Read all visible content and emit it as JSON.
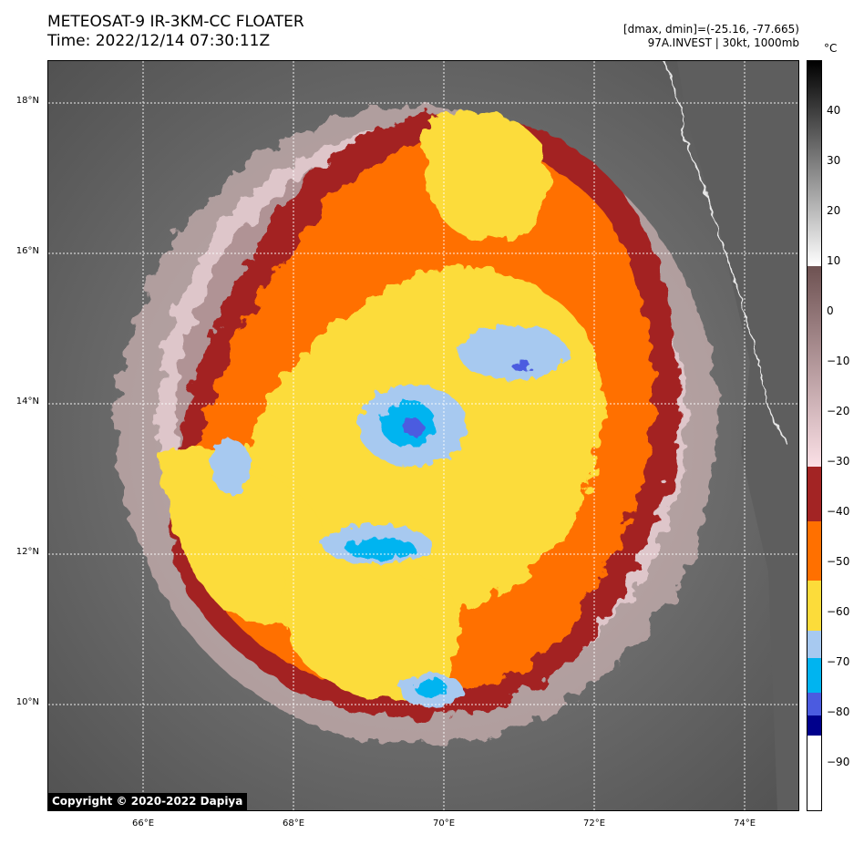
{
  "header": {
    "title_line1": "METEOSAT-9 IR-3KM-CC FLOATER",
    "title_line2": "Time: 2022/12/14 07:30:11Z",
    "meta_line1": "[dmax, dmin]=(-25.16, -77.665)",
    "meta_line2": "97A.INVEST | 30kt, 1000mb"
  },
  "map": {
    "copyright": "Copyright © 2020-2022 Dapiya",
    "lat_labels": [
      {
        "text": "18°N",
        "lat": 18
      },
      {
        "text": "16°N",
        "lat": 16
      },
      {
        "text": "14°N",
        "lat": 14
      },
      {
        "text": "12°N",
        "lat": 12
      },
      {
        "text": "10°N",
        "lat": 10
      }
    ],
    "lon_labels": [
      {
        "text": "66°E",
        "lon": 66
      },
      {
        "text": "68°E",
        "lon": 68
      },
      {
        "text": "70°E",
        "lon": 70
      },
      {
        "text": "72°E",
        "lon": 72
      },
      {
        "text": "74°E",
        "lon": 74
      }
    ],
    "lat_range": [
      8.55,
      18.55
    ],
    "lon_range": [
      64.75,
      74.75
    ]
  },
  "colorbar": {
    "unit": "°C",
    "range": [
      -100,
      50
    ],
    "ticks": [
      "40",
      "30",
      "20",
      "10",
      "0",
      "−10",
      "−20",
      "−30",
      "−40",
      "−50",
      "−60",
      "−70",
      "−80",
      "−90"
    ],
    "tick_values": [
      40,
      30,
      20,
      10,
      0,
      -10,
      -20,
      -30,
      -40,
      -50,
      -60,
      -70,
      -80,
      -90
    ],
    "colors": {
      "brown_dark": "#6e5252",
      "pink_light": "#fbe0e6",
      "red_dark": "#a32424",
      "orange": "#ff7000",
      "yellow": "#fcdc3a",
      "light_blue": "#a7c9f0",
      "cyan": "#00b4f0",
      "blue": "#4b5be0",
      "navy": "#00008c"
    }
  }
}
